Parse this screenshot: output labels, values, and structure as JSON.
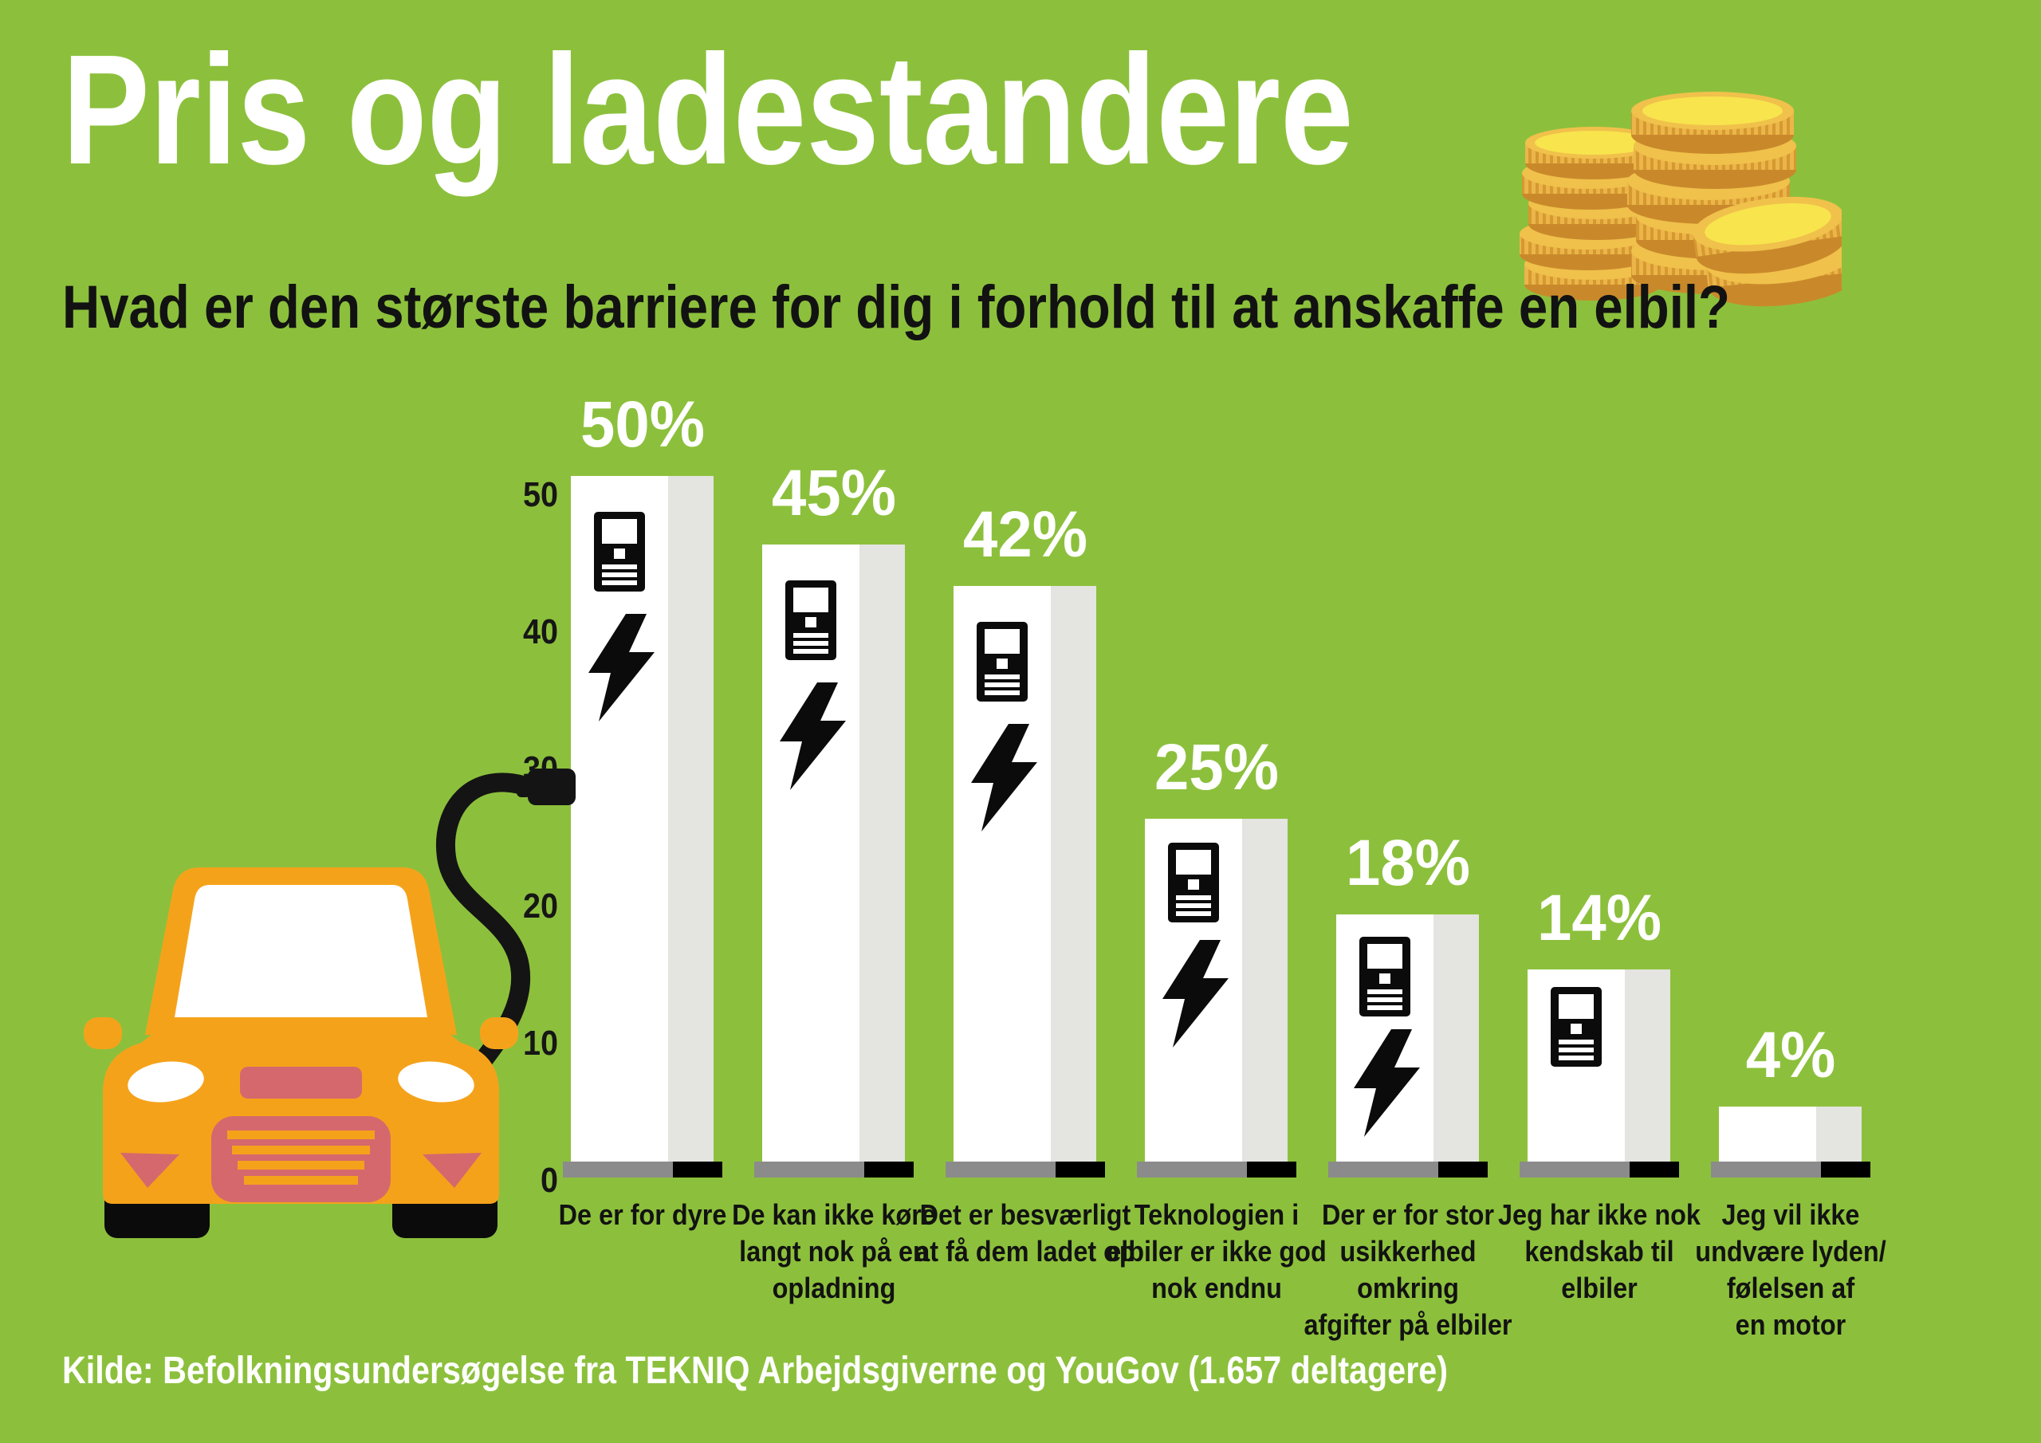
{
  "title": "Pris og ladestandere",
  "subtitle": "Hvad er den største barriere for dig i forhold til at anskaffe en elbil?",
  "source": "Kilde: Befolkningsundersøgelse fra TEKNIQ Arbejdsgiverne og YouGov (1.657 deltagere)",
  "colors": {
    "background": "#8CC03C",
    "bar_face": "#FFFFFF",
    "bar_side": "#E4E4E0",
    "base_grey": "#8B8B8B",
    "base_black": "#000000",
    "icon_black": "#0B0B0B",
    "cable_black": "#141414",
    "car_orange": "#F5A21B",
    "car_accent_pink": "#D5686D",
    "coin_face": "#F8E44D",
    "coin_rim": "#F0C14B",
    "coin_edge": "#EBB54A",
    "coin_edge_dark": "#D6992F",
    "text_light": "#FFFFFF",
    "text_dark": "#121212"
  },
  "chart_data": {
    "type": "bar",
    "title": "Hvad er den største barriere for dig i forhold til at anskaffe en elbil?",
    "categories": [
      "De er for dyre",
      "De kan ikke køre\nlangt nok på en\nopladning",
      "Det er besværligt\nat få dem ladet op",
      "Teknologien i\nelbiler er ikke god\nnok endnu",
      "Der er for stor\nusikkerhed\nomkring\nafgifter på elbiler",
      "Jeg har ikke nok\nkendskab til\nelbiler",
      "Jeg vil ikke\nundvære lyden/\nfølelsen af\nen motor"
    ],
    "values": [
      50,
      45,
      42,
      25,
      18,
      14,
      4
    ],
    "value_labels": [
      "50%",
      "45%",
      "42%",
      "25%",
      "18%",
      "14%",
      "4%"
    ],
    "unit": "%",
    "xlabel": "",
    "ylabel": "",
    "ylim": [
      0,
      50
    ],
    "yticks": [
      0,
      10,
      20,
      30,
      40,
      50
    ],
    "grid": false,
    "legend": null,
    "bar_icons": [
      [
        "charging-station",
        "lightning-bolt"
      ],
      [
        "charging-station",
        "lightning-bolt"
      ],
      [
        "charging-station",
        "lightning-bolt"
      ],
      [
        "charging-station",
        "lightning-bolt"
      ],
      [
        "charging-station",
        "lightning-bolt"
      ],
      [
        "charging-station"
      ],
      []
    ]
  }
}
